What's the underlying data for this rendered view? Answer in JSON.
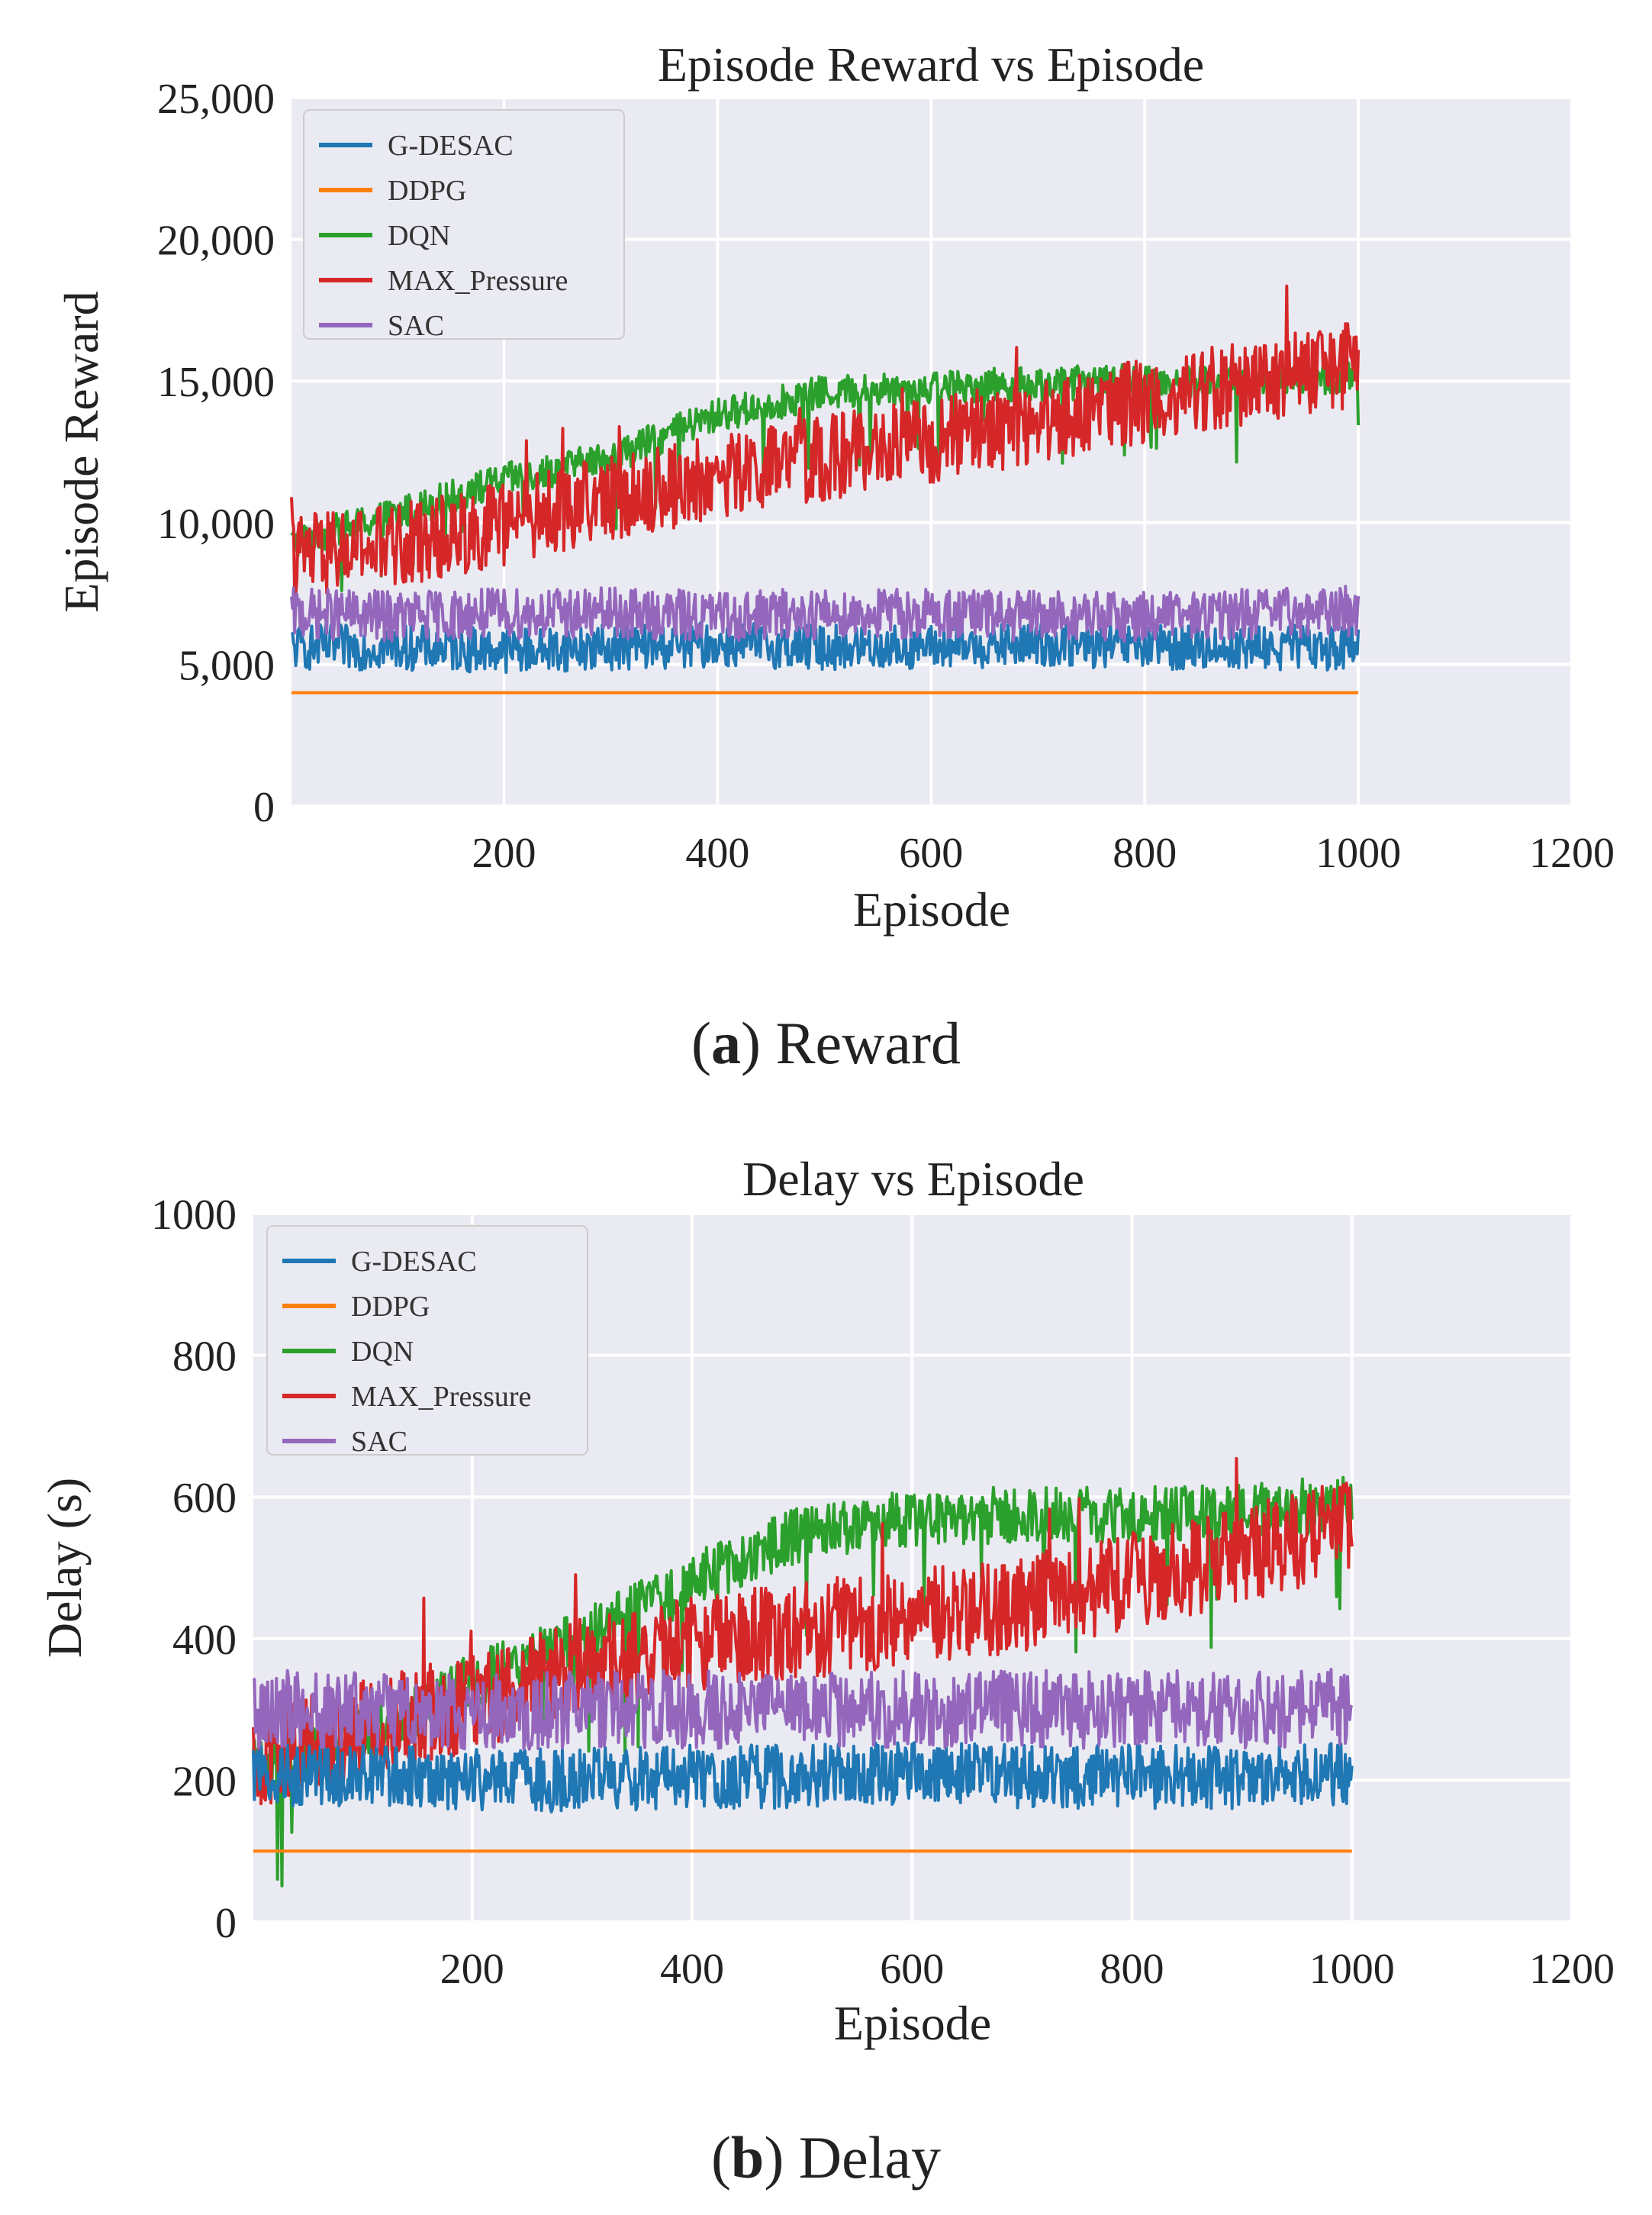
{
  "captions": {
    "a_letter": "a",
    "a_text": "Reward",
    "b_letter": "b",
    "b_text": "Delay"
  },
  "colors": {
    "G-DESAC": "#1f77b4",
    "DDPG": "#ff7f0e",
    "DQN": "#2ca02c",
    "MAX_Pressure": "#d62728",
    "SAC": "#9467bd",
    "plot_bg": "#eaeaf2",
    "grid": "#ffffff"
  },
  "chart_data": [
    {
      "type": "line",
      "title": "Episode Reward vs Episode",
      "xlabel": "Episode",
      "ylabel": "Episode Reward",
      "xlim": [
        1,
        1200
      ],
      "ylim": [
        0,
        25000
      ],
      "xticks": [
        200,
        400,
        600,
        800,
        1000,
        1200
      ],
      "xtick_labels": [
        "200",
        "400",
        "600",
        "800",
        "1000",
        "1200"
      ],
      "yticks": [
        0,
        5000,
        10000,
        15000,
        20000,
        25000
      ],
      "ytick_labels": [
        "0",
        "5,000",
        "10,000",
        "15,000",
        "20,000",
        "25,000"
      ],
      "legend": [
        "G-DESAC",
        "DDPG",
        "DQN",
        "MAX_Pressure",
        "SAC"
      ],
      "legend_position": "upper-left",
      "grid": true,
      "series": [
        {
          "name": "G-DESAC",
          "x": [
            1,
            100,
            200,
            300,
            400,
            500,
            600,
            700,
            800,
            900,
            1000
          ],
          "values": [
            5600,
            5600,
            5500,
            5600,
            5700,
            5600,
            5600,
            5700,
            5600,
            5600,
            5600
          ],
          "noise": 800
        },
        {
          "name": "DDPG",
          "x": [
            1,
            1000
          ],
          "values": [
            4000,
            4000
          ],
          "noise": 0
        },
        {
          "name": "DQN",
          "x": [
            1,
            100,
            200,
            300,
            400,
            500,
            600,
            700,
            800,
            900,
            1000
          ],
          "values": [
            9300,
            10300,
            11500,
            12300,
            13800,
            14600,
            14800,
            14900,
            15000,
            15000,
            15100
          ],
          "noise": 600
        },
        {
          "name": "MAX_Pressure",
          "x": [
            1,
            100,
            200,
            300,
            400,
            500,
            600,
            700,
            800,
            900,
            1000
          ],
          "values": [
            8800,
            9200,
            10000,
            10900,
            11600,
            12300,
            12900,
            13600,
            14300,
            15000,
            15600
          ],
          "noise": 1500
        },
        {
          "name": "SAC",
          "x": [
            1,
            100,
            200,
            300,
            400,
            500,
            600,
            700,
            800,
            900,
            1000
          ],
          "values": [
            6800,
            6700,
            6800,
            6800,
            6700,
            6800,
            6800,
            6700,
            6700,
            6800,
            6900
          ],
          "noise": 900
        }
      ]
    },
    {
      "type": "line",
      "title": "Delay vs Episode",
      "xlabel": "Episode",
      "ylabel": "Delay (s)",
      "xlim": [
        1,
        1200
      ],
      "ylim": [
        0,
        1000
      ],
      "xticks": [
        200,
        400,
        600,
        800,
        1000,
        1200
      ],
      "xtick_labels": [
        "200",
        "400",
        "600",
        "800",
        "1000",
        "1200"
      ],
      "yticks": [
        0,
        200,
        400,
        600,
        800,
        1000
      ],
      "ytick_labels": [
        "0",
        "200",
        "400",
        "600",
        "800",
        "1000"
      ],
      "legend": [
        "G-DESAC",
        "DDPG",
        "DQN",
        "MAX_Pressure",
        "SAC"
      ],
      "legend_position": "upper-left",
      "grid": true,
      "series": [
        {
          "name": "G-DESAC",
          "x": [
            1,
            100,
            200,
            300,
            400,
            500,
            600,
            700,
            800,
            900,
            1000
          ],
          "values": [
            210,
            205,
            200,
            200,
            205,
            205,
            210,
            205,
            205,
            205,
            210
          ],
          "noise": 45
        },
        {
          "name": "DDPG",
          "x": [
            1,
            1000
          ],
          "values": [
            100,
            100
          ],
          "noise": 0
        },
        {
          "name": "DQN",
          "x": [
            1,
            100,
            200,
            300,
            400,
            500,
            600,
            700,
            800,
            900,
            1000
          ],
          "values": [
            220,
            260,
            340,
            400,
            480,
            550,
            570,
            575,
            575,
            580,
            590
          ],
          "noise": 40
        },
        {
          "name": "MAX_Pressure",
          "x": [
            1,
            100,
            200,
            300,
            400,
            500,
            600,
            700,
            800,
            900,
            1000
          ],
          "values": [
            230,
            270,
            310,
            360,
            390,
            410,
            430,
            450,
            480,
            520,
            560
          ],
          "noise": 70
        },
        {
          "name": "SAC",
          "x": [
            1,
            100,
            200,
            300,
            400,
            500,
            600,
            700,
            800,
            900,
            1000
          ],
          "values": [
            300,
            300,
            295,
            300,
            300,
            300,
            300,
            300,
            300,
            300,
            305
          ],
          "noise": 55
        }
      ]
    }
  ]
}
